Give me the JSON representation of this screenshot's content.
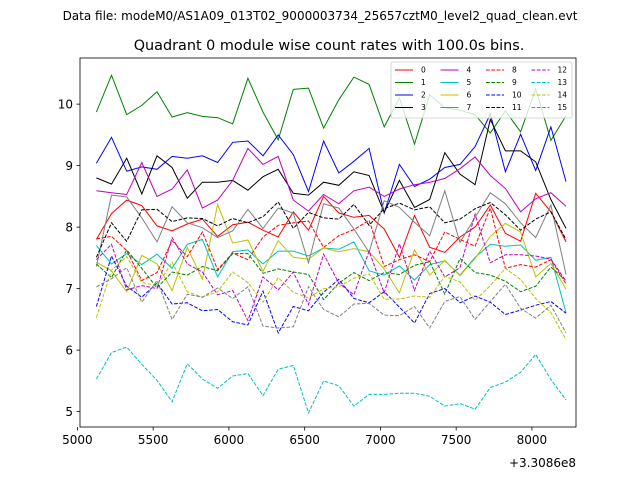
{
  "suptitle": "Data file: modeM0/AS1A09_013T02_9000003734_25657cztM0_level2_quad_clean.evt",
  "chart_data": {
    "type": "line",
    "title": "Quadrant 0 module wise count rates with 100.0s bins.",
    "xlabel": "",
    "ylabel": "",
    "x_offset_label": "+3.3086e8",
    "xlim": [
      5017,
      8291
    ],
    "ylim": [
      4.75,
      10.75
    ],
    "xticks": [
      5000,
      5500,
      6000,
      6500,
      7000,
      7500,
      8000
    ],
    "yticks": [
      5,
      6,
      7,
      8,
      9,
      10
    ],
    "grid": false,
    "legend_position": "top-right",
    "x": [
      5125,
      5225,
      5325,
      5425,
      5525,
      5625,
      5725,
      5825,
      5925,
      6025,
      6125,
      6225,
      6325,
      6425,
      6525,
      6625,
      6725,
      6825,
      6925,
      7025,
      7125,
      7225,
      7325,
      7425,
      7525,
      7625,
      7725,
      7825,
      7925,
      8025,
      8125,
      8225
    ],
    "series": [
      {
        "name": "0",
        "color": "#ff0000",
        "dash": "solid",
        "values": [
          7.8,
          8.22,
          8.44,
          8.35,
          8.02,
          7.94,
          8.05,
          8.13,
          7.85,
          8.04,
          8.08,
          7.95,
          7.84,
          8.25,
          7.95,
          8.5,
          8.23,
          8.16,
          8.19,
          7.97,
          7.51,
          8.19,
          7.67,
          7.59,
          7.84,
          8.0,
          8.36,
          7.9,
          7.77,
          8.55,
          8.25,
          7.76
        ]
      },
      {
        "name": "1",
        "color": "#008000",
        "dash": "solid",
        "values": [
          9.87,
          10.47,
          9.83,
          9.98,
          10.2,
          9.79,
          9.86,
          9.8,
          9.78,
          9.68,
          10.42,
          9.87,
          9.42,
          10.24,
          10.26,
          9.61,
          10.07,
          10.44,
          10.32,
          9.63,
          10.1,
          9.35,
          10.15,
          9.94,
          9.9,
          9.83,
          9.53,
          9.89,
          9.55,
          10.25,
          9.41,
          9.81
        ]
      },
      {
        "name": "2",
        "color": "#0000ff",
        "dash": "solid",
        "values": [
          9.04,
          9.46,
          8.91,
          8.98,
          8.94,
          9.15,
          9.12,
          9.16,
          9.05,
          9.38,
          9.4,
          9.16,
          9.5,
          9.18,
          8.58,
          9.4,
          8.88,
          9.07,
          9.28,
          8.23,
          9.02,
          8.66,
          8.78,
          8.97,
          9.02,
          9.31,
          9.84,
          8.9,
          9.51,
          8.92,
          9.63,
          8.74
        ]
      },
      {
        "name": "3",
        "color": "#000000",
        "dash": "solid",
        "values": [
          8.8,
          8.7,
          9.12,
          8.54,
          9.16,
          8.97,
          8.47,
          8.73,
          8.73,
          8.76,
          8.6,
          8.82,
          8.94,
          8.55,
          8.52,
          8.73,
          8.68,
          8.9,
          8.84,
          8.24,
          8.76,
          8.32,
          8.45,
          9.21,
          8.86,
          8.69,
          9.75,
          9.24,
          9.24,
          9.06,
          8.45,
          7.98
        ]
      },
      {
        "name": "4",
        "color": "#bf00bf",
        "dash": "solid",
        "values": [
          8.59,
          8.56,
          8.53,
          9.05,
          8.5,
          8.62,
          8.93,
          8.31,
          8.44,
          8.76,
          9.28,
          9.02,
          9.15,
          8.44,
          8.26,
          8.53,
          8.38,
          8.59,
          8.65,
          8.5,
          8.62,
          8.69,
          8.73,
          8.79,
          8.95,
          9.14,
          8.84,
          8.63,
          8.25,
          8.46,
          8.56,
          8.34
        ]
      },
      {
        "name": "5",
        "color": "#00bfbf",
        "dash": "solid",
        "values": [
          7.7,
          7.4,
          7.57,
          7.39,
          7.56,
          7.33,
          7.72,
          7.8,
          7.19,
          7.6,
          7.63,
          7.4,
          7.61,
          7.61,
          7.53,
          7.66,
          7.64,
          7.76,
          7.29,
          7.22,
          7.37,
          7.14,
          7.39,
          7.45,
          7.22,
          7.51,
          7.72,
          7.69,
          7.71,
          7.46,
          7.51,
          6.61
        ]
      },
      {
        "name": "6",
        "color": "#bfbf00",
        "dash": "solid",
        "values": [
          7.43,
          7.29,
          6.95,
          7.54,
          7.4,
          6.97,
          7.67,
          7.15,
          8.37,
          7.74,
          7.79,
          7.28,
          7.78,
          7.51,
          7.48,
          7.66,
          7.6,
          7.65,
          7.6,
          7.32,
          6.93,
          7.63,
          7.22,
          7.46,
          7.21,
          7.49,
          7.85,
          8.06,
          7.92,
          7.19,
          7.41,
          6.99
        ]
      },
      {
        "name": "7",
        "color": "#808080",
        "dash": "solid",
        "values": [
          7.36,
          8.52,
          8.49,
          8.15,
          7.76,
          8.33,
          8.07,
          7.99,
          7.83,
          7.94,
          8.29,
          7.98,
          8.31,
          8.23,
          7.42,
          8.38,
          8.31,
          7.97,
          7.59,
          8.43,
          8.32,
          8.08,
          7.86,
          8.59,
          7.75,
          8.16,
          8.56,
          8.38,
          8.07,
          7.83,
          8.36,
          7.23
        ]
      },
      {
        "name": "8",
        "color": "#ff0000",
        "dash": "dashed",
        "values": [
          7.81,
          7.85,
          7.62,
          7.13,
          7.26,
          7.78,
          7.52,
          7.92,
          7.31,
          7.58,
          7.47,
          7.84,
          8.03,
          8.07,
          8.1,
          7.67,
          7.86,
          7.96,
          8.11,
          7.36,
          7.47,
          7.55,
          7.44,
          7.92,
          7.8,
          7.69,
          8.31,
          7.33,
          7.39,
          7.35,
          7.47,
          7.08
        ]
      },
      {
        "name": "9",
        "color": "#008000",
        "dash": "dashed",
        "values": [
          7.4,
          7.18,
          7.63,
          7.33,
          7.01,
          7.27,
          7.22,
          7.36,
          7.29,
          7.57,
          7.57,
          7.25,
          7.32,
          7.27,
          7.23,
          6.82,
          7.09,
          7.26,
          7.13,
          7.26,
          7.23,
          7.38,
          7.44,
          6.91,
          7.49,
          7.26,
          7.22,
          7.12,
          6.95,
          7.04,
          7.35,
          7.13
        ]
      },
      {
        "name": "10",
        "color": "#0000ff",
        "dash": "dashed",
        "values": [
          6.71,
          7.53,
          7.04,
          6.86,
          7.09,
          6.75,
          6.77,
          6.64,
          6.66,
          6.46,
          6.41,
          6.96,
          6.28,
          6.71,
          6.64,
          6.94,
          7.15,
          6.84,
          6.77,
          6.95,
          6.7,
          6.44,
          6.92,
          7.0,
          6.77,
          6.88,
          6.78,
          6.58,
          6.65,
          6.73,
          6.79,
          6.6
        ]
      },
      {
        "name": "11",
        "color": "#000000",
        "dash": "dashed",
        "values": [
          7.51,
          8.07,
          7.77,
          8.28,
          8.29,
          8.09,
          8.15,
          8.14,
          8.02,
          8.14,
          8.07,
          8.17,
          8.41,
          7.98,
          8.24,
          8.15,
          8.13,
          8.37,
          8.03,
          8.3,
          8.39,
          8.28,
          8.33,
          8.07,
          8.13,
          8.3,
          8.4,
          8.2,
          7.95,
          8.13,
          8.25,
          7.8
        ]
      },
      {
        "name": "12",
        "color": "#bf00bf",
        "dash": "dashed",
        "values": [
          7.47,
          7.72,
          6.98,
          7.05,
          7.0,
          7.83,
          7.4,
          7.27,
          6.9,
          6.97,
          6.48,
          7.19,
          6.98,
          7.27,
          6.74,
          7.56,
          7.09,
          6.9,
          7.61,
          6.93,
          7.73,
          6.97,
          7.61,
          7.19,
          7.34,
          8.21,
          7.42,
          7.55,
          7.55,
          7.53,
          7.48,
          7.12
        ]
      },
      {
        "name": "13",
        "color": "#00bfbf",
        "dash": "dashed",
        "values": [
          5.53,
          5.96,
          6.05,
          5.77,
          5.51,
          5.16,
          5.78,
          5.53,
          5.38,
          5.58,
          5.62,
          5.26,
          5.69,
          5.75,
          4.98,
          5.5,
          5.42,
          5.09,
          5.28,
          5.28,
          5.3,
          5.3,
          5.25,
          5.09,
          5.13,
          5.04,
          5.39,
          5.48,
          5.64,
          5.93,
          5.52,
          5.19
        ]
      },
      {
        "name": "14",
        "color": "#bfbf00",
        "dash": "dashed",
        "values": [
          6.53,
          7.3,
          7.52,
          7.1,
          7.05,
          7.43,
          6.95,
          6.86,
          6.95,
          7.27,
          7.1,
          6.78,
          7.18,
          6.94,
          6.85,
          7.0,
          7.03,
          7.17,
          7.24,
          6.83,
          6.83,
          6.88,
          6.86,
          7.2,
          7.11,
          6.81,
          7.05,
          7.33,
          7.15,
          6.84,
          6.61,
          6.17
        ]
      },
      {
        "name": "15",
        "color": "#808080",
        "dash": "dashed",
        "values": [
          7.03,
          7.16,
          7.34,
          6.78,
          7.13,
          6.5,
          6.91,
          6.86,
          7.01,
          6.84,
          7.03,
          6.39,
          6.36,
          6.38,
          7.03,
          6.66,
          6.54,
          6.75,
          6.76,
          6.57,
          6.56,
          6.71,
          6.36,
          6.79,
          6.87,
          6.5,
          6.79,
          7.07,
          6.68,
          6.52,
          6.73,
          6.28
        ]
      }
    ]
  }
}
